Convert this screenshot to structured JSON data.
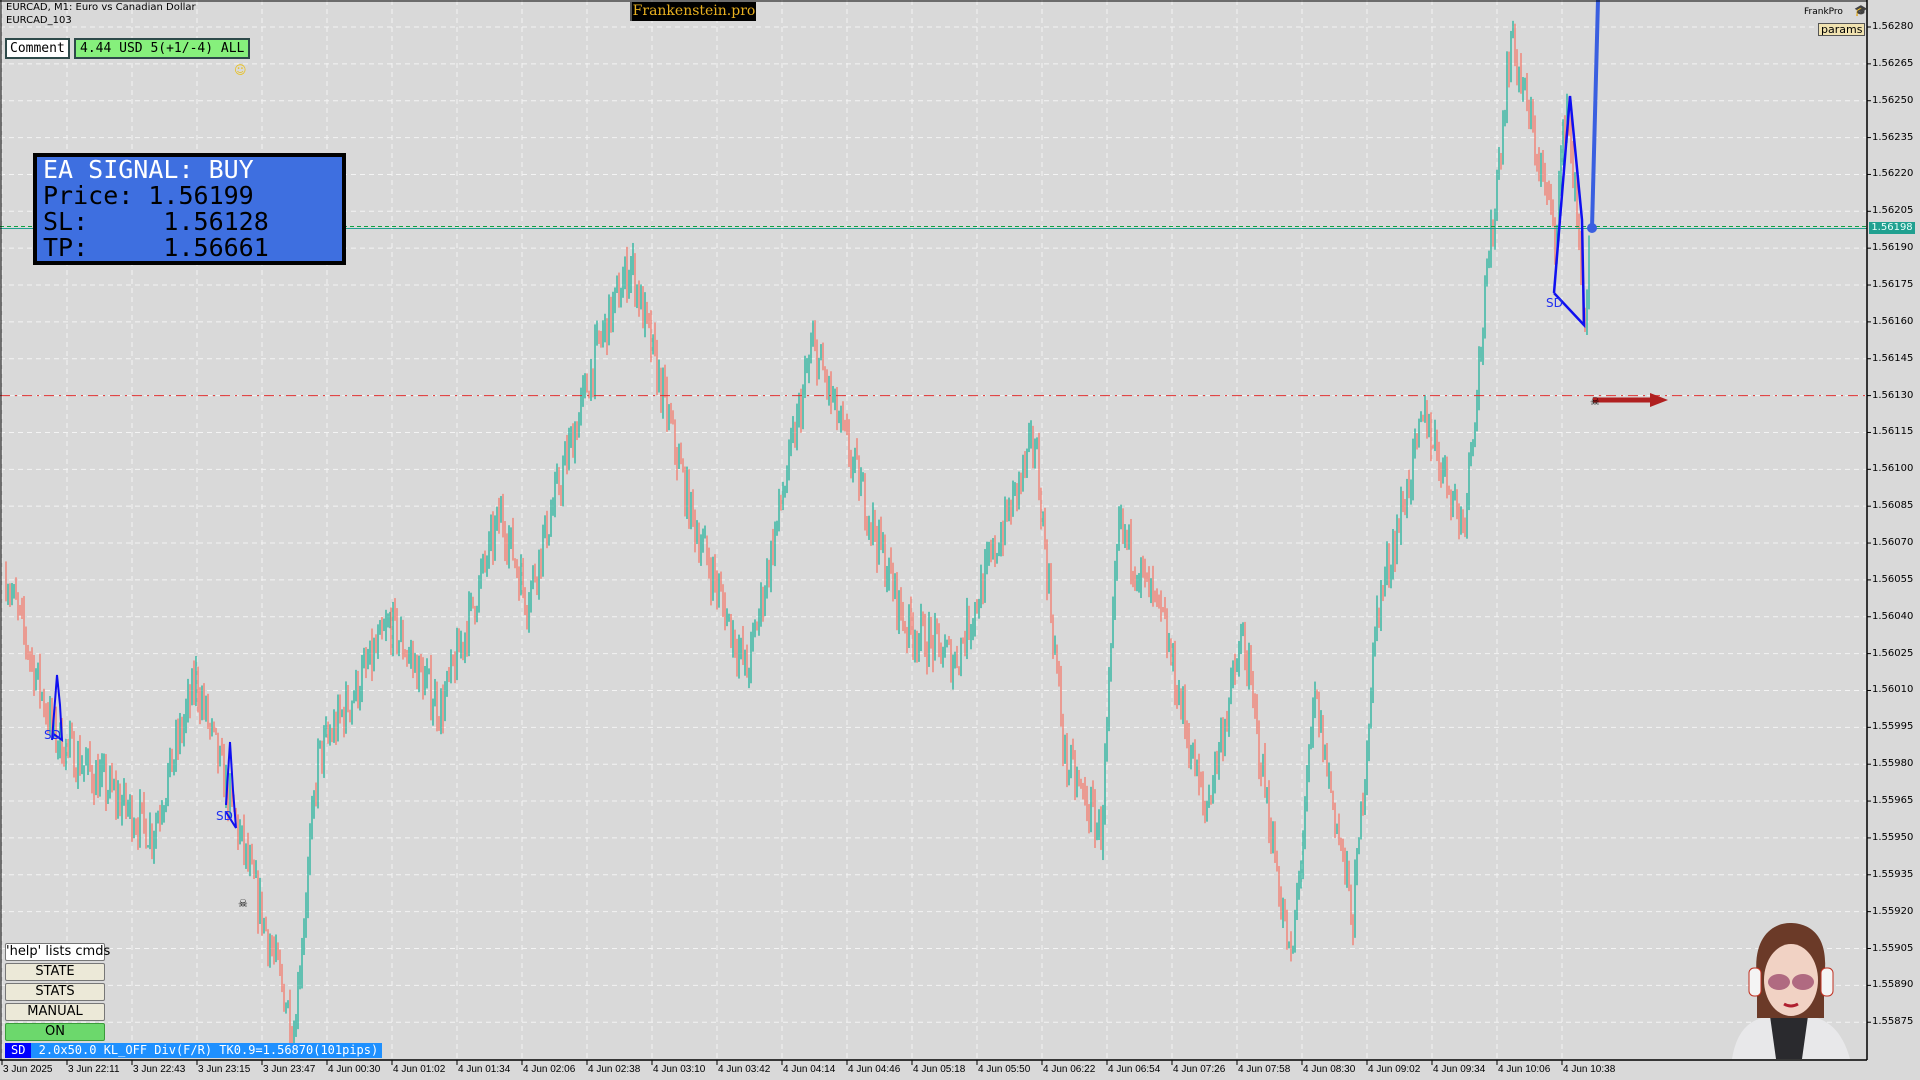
{
  "header": {
    "symbol_line": "EURCAD, M1:  Euro vs Canadian Dollar",
    "account_line": "EURCAD_103"
  },
  "comment": {
    "label": "Comment",
    "value": "4.44 USD 5(+1/-4) ALL"
  },
  "brand": {
    "label": "Frankenstein.pro",
    "frankpro": "FrankPro",
    "params_label": "params",
    "frankpro_icon": "graduation-cap-icon"
  },
  "signal": {
    "title": "EA SIGNAL: BUY",
    "price": "Price: 1.56199",
    "sl": "SL:     1.56128",
    "tp": "TP:     1.56661"
  },
  "buttons": {
    "help": "'help' lists cmds",
    "state": "STATE",
    "stats": "STATS",
    "manual": "MANUAL",
    "on": "ON"
  },
  "status_bar": {
    "tag": "SD",
    "text": " 2.0x50.0 KL_OFF Div(F/R) TK0.9=1.56870(101pips)"
  },
  "colors": {
    "bull": "#22b39c",
    "bear": "#f47a6c",
    "signal_bg": "#3e6fe0",
    "overlay": "#1010f0",
    "sl_line": "#e03030",
    "price_line": "#20a090"
  },
  "price_axis": {
    "labels": [
      "1.56280",
      "1.56265",
      "1.56250",
      "1.56235",
      "1.56220",
      "1.56205",
      "1.56190",
      "1.56175",
      "1.56160",
      "1.56145",
      "1.56130",
      "1.56115",
      "1.56100",
      "1.56085",
      "1.56070",
      "1.56055",
      "1.56040",
      "1.56025",
      "1.56010",
      "1.55995",
      "1.55980",
      "1.55965",
      "1.55950",
      "1.55935",
      "1.55920",
      "1.55905",
      "1.55890",
      "1.55875"
    ],
    "current_price": "1.56198"
  },
  "time_axis": {
    "labels": [
      "3 Jun 2025",
      "3 Jun 22:11",
      "3 Jun 22:43",
      "3 Jun 23:15",
      "3 Jun 23:47",
      "4 Jun 00:30",
      "4 Jun 01:02",
      "4 Jun 01:34",
      "4 Jun 02:06",
      "4 Jun 02:38",
      "4 Jun 03:10",
      "4 Jun 03:42",
      "4 Jun 04:14",
      "4 Jun 04:46",
      "4 Jun 05:18",
      "4 Jun 05:50",
      "4 Jun 06:22",
      "4 Jun 06:54",
      "4 Jun 07:26",
      "4 Jun 07:58",
      "4 Jun 08:30",
      "4 Jun 09:02",
      "4 Jun 09:34",
      "4 Jun 10:06",
      "4 Jun 10:38"
    ]
  },
  "chart_data": {
    "type": "ohlc-bars",
    "timeframe": "M1",
    "ylim": [
      1.5586,
      1.5629
    ],
    "levels": {
      "entry": 1.56198,
      "stop_loss": 1.5613
    },
    "price_path": [
      [
        "21:41",
        1.56057
      ],
      [
        "22:05",
        1.55992
      ],
      [
        "22:54",
        1.55952
      ],
      [
        "23:16",
        1.56014
      ],
      [
        "23:34",
        1.55962
      ],
      [
        "00:05",
        1.55872
      ],
      [
        "00:17",
        1.55982
      ],
      [
        "01:05",
        1.56037
      ],
      [
        "01:30",
        1.56002
      ],
      [
        "02:00",
        1.56082
      ],
      [
        "02:13",
        1.56047
      ],
      [
        "02:49",
        1.56151
      ],
      [
        "03:05",
        1.56184
      ],
      [
        "03:35",
        1.56082
      ],
      [
        "04:03",
        1.56017
      ],
      [
        "04:36",
        1.56151
      ],
      [
        "05:04",
        1.56082
      ],
      [
        "05:22",
        1.56037
      ],
      [
        "05:47",
        1.56022
      ],
      [
        "06:27",
        1.56112
      ],
      [
        "06:42",
        1.55982
      ],
      [
        "07:00",
        1.55952
      ],
      [
        "07:09",
        1.56077
      ],
      [
        "07:31",
        1.56037
      ],
      [
        "07:52",
        1.5596
      ],
      [
        "08:11",
        1.56032
      ],
      [
        "08:35",
        1.55897
      ],
      [
        "08:47",
        1.56007
      ],
      [
        "09:06",
        1.55917
      ],
      [
        "09:18",
        1.56042
      ],
      [
        "09:42",
        1.56122
      ],
      [
        "10:01",
        1.56077
      ],
      [
        "10:10",
        1.56151
      ],
      [
        "10:25",
        1.56276
      ],
      [
        "10:47",
        1.56196
      ],
      [
        "10:53",
        1.56251
      ],
      [
        "11:02",
        1.56159
      ],
      [
        "11:05",
        1.56198
      ]
    ]
  }
}
